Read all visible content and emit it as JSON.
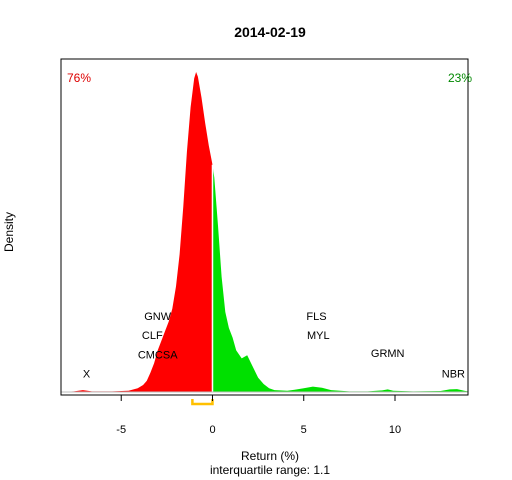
{
  "chart_data": {
    "type": "area",
    "title": "2014-02-19",
    "xlabel": "Return (%)",
    "subtitle": "interquartile range: 1.1",
    "ylabel": "Density",
    "xlim": [
      -8.3,
      14.0
    ],
    "ylim": [
      0,
      1.0
    ],
    "x_ticks": [
      {
        "value": -5,
        "label": "-5"
      },
      {
        "value": 0,
        "label": "0"
      },
      {
        "value": 5,
        "label": "5"
      },
      {
        "value": 10,
        "label": "10"
      }
    ],
    "split_at": 0,
    "negative_share": "76%",
    "positive_share": "23%",
    "colors": {
      "negative": "#ff0000",
      "positive": "#00e000",
      "negative_label": "#dd0000",
      "positive_label": "#008800",
      "iqr": "#ffc000",
      "axis": "#000000",
      "baseline": "#bebebe"
    },
    "interquartile_range": [
      -1.1,
      0.0
    ],
    "density": [
      [
        -8.3,
        0.0
      ],
      [
        -7.6,
        0.002
      ],
      [
        -7.1,
        0.006
      ],
      [
        -6.6,
        0.002
      ],
      [
        -5.5,
        0.002
      ],
      [
        -4.6,
        0.004
      ],
      [
        -4.1,
        0.012
      ],
      [
        -3.8,
        0.022
      ],
      [
        -3.6,
        0.035
      ],
      [
        -3.4,
        0.06
      ],
      [
        -3.2,
        0.09
      ],
      [
        -3.0,
        0.13
      ],
      [
        -2.8,
        0.16
      ],
      [
        -2.6,
        0.19
      ],
      [
        -2.4,
        0.22
      ],
      [
        -2.2,
        0.26
      ],
      [
        -2.0,
        0.33
      ],
      [
        -1.8,
        0.43
      ],
      [
        -1.6,
        0.58
      ],
      [
        -1.4,
        0.75
      ],
      [
        -1.2,
        0.89
      ],
      [
        -1.0,
        0.98
      ],
      [
        -0.9,
        1.0
      ],
      [
        -0.8,
        0.985
      ],
      [
        -0.6,
        0.92
      ],
      [
        -0.4,
        0.84
      ],
      [
        -0.2,
        0.77
      ],
      [
        0.0,
        0.71
      ],
      [
        0.1,
        0.67
      ],
      [
        0.3,
        0.52
      ],
      [
        0.5,
        0.36
      ],
      [
        0.7,
        0.25
      ],
      [
        0.9,
        0.2
      ],
      [
        1.1,
        0.17
      ],
      [
        1.3,
        0.13
      ],
      [
        1.6,
        0.105
      ],
      [
        1.9,
        0.115
      ],
      [
        2.2,
        0.08
      ],
      [
        2.5,
        0.045
      ],
      [
        2.8,
        0.025
      ],
      [
        3.1,
        0.012
      ],
      [
        3.4,
        0.006
      ],
      [
        3.7,
        0.005
      ],
      [
        4.1,
        0.004
      ],
      [
        4.5,
        0.007
      ],
      [
        5.0,
        0.012
      ],
      [
        5.5,
        0.017
      ],
      [
        6.0,
        0.013
      ],
      [
        6.5,
        0.006
      ],
      [
        7.5,
        0.002
      ],
      [
        8.5,
        0.002
      ],
      [
        9.3,
        0.005
      ],
      [
        9.6,
        0.008
      ],
      [
        9.9,
        0.004
      ],
      [
        11.0,
        0.002
      ],
      [
        12.5,
        0.003
      ],
      [
        13.0,
        0.008
      ],
      [
        13.4,
        0.009
      ],
      [
        13.8,
        0.004
      ],
      [
        14.0,
        0.002
      ]
    ],
    "annotations": [
      {
        "label": "X",
        "x": -6.9,
        "y": 0.045,
        "anchor": "middle"
      },
      {
        "label": "CMCSA",
        "x": -3.0,
        "y": 0.105,
        "anchor": "middle"
      },
      {
        "label": "CLF",
        "x": -3.3,
        "y": 0.165,
        "anchor": "middle"
      },
      {
        "label": "GNW",
        "x": -3.0,
        "y": 0.225,
        "anchor": "middle"
      },
      {
        "label": "FLS",
        "x": 5.7,
        "y": 0.225,
        "anchor": "middle"
      },
      {
        "label": "MYL",
        "x": 5.8,
        "y": 0.165,
        "anchor": "middle"
      },
      {
        "label": "GRMN",
        "x": 9.6,
        "y": 0.11,
        "anchor": "middle"
      },
      {
        "label": "NBR",
        "x": 13.2,
        "y": 0.045,
        "anchor": "middle"
      }
    ]
  }
}
